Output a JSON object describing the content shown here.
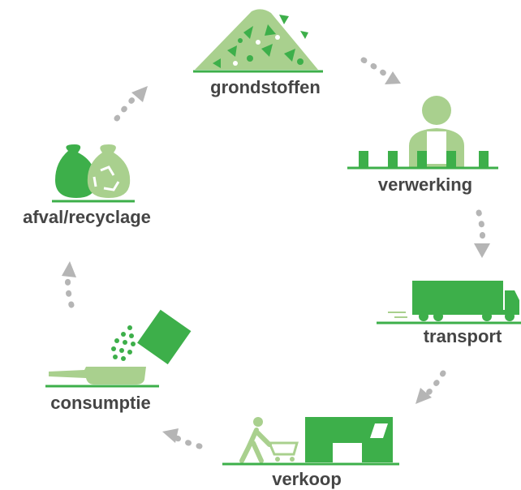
{
  "nodes": [
    {
      "label": "grondstoffen"
    },
    {
      "label": "verwerking"
    },
    {
      "label": "transport"
    },
    {
      "label": "verkoop"
    },
    {
      "label": "consumptie"
    },
    {
      "label": "afval/recyclage"
    }
  ]
}
